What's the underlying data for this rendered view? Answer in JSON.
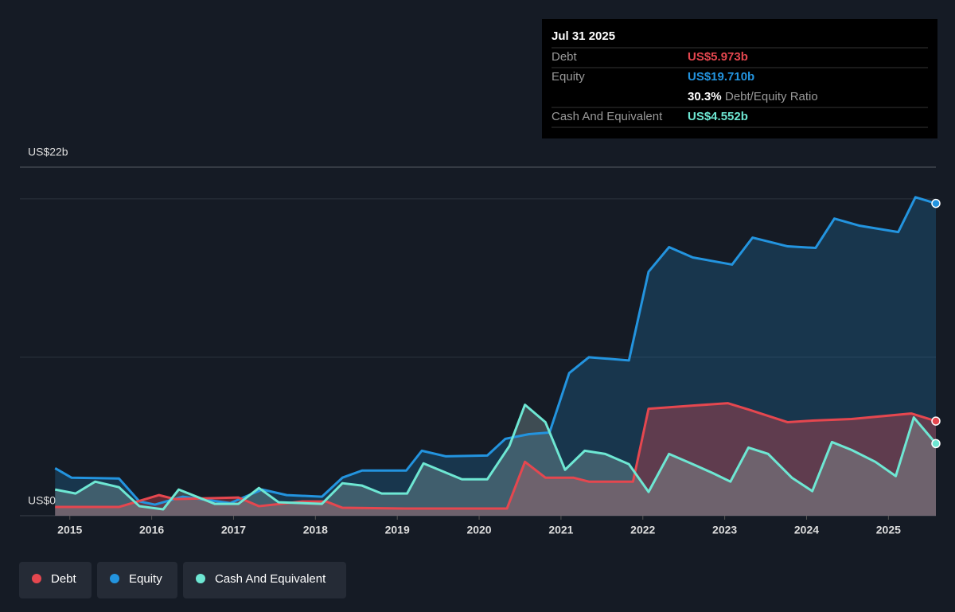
{
  "chart_data": {
    "type": "area",
    "xlim": [
      2014.39,
      2025.58
    ],
    "xticks": [
      2015,
      2016,
      2017,
      2018,
      2019,
      2020,
      2021,
      2022,
      2023,
      2024,
      2025
    ],
    "ylim": [
      0,
      22
    ],
    "yticks": [
      {
        "value": 0,
        "label": "US$0"
      },
      {
        "value": 22,
        "label": "US$22b"
      }
    ],
    "gridlines": [
      10,
      20
    ],
    "series": [
      {
        "name": "Debt",
        "color": "#e5474f",
        "x": [
          2014.82,
          2015.6,
          2016.09,
          2016.28,
          2017.06,
          2017.31,
          2017.84,
          2018.13,
          2018.33,
          2019.11,
          2019.98,
          2020.34,
          2020.56,
          2020.81,
          2021.15,
          2021.34,
          2021.88,
          2022.07,
          2022.61,
          2023.04,
          2023.29,
          2023.77,
          2024.07,
          2024.55,
          2025.28,
          2025.58
        ],
        "values": [
          0.55,
          0.55,
          1.3,
          1.05,
          1.15,
          0.6,
          0.9,
          0.9,
          0.5,
          0.45,
          0.45,
          0.45,
          3.4,
          2.4,
          2.4,
          2.15,
          2.15,
          6.75,
          6.95,
          7.1,
          6.7,
          5.9,
          6.0,
          6.1,
          6.45,
          5.973
        ]
      },
      {
        "name": "Equity",
        "color": "#2394df",
        "x": [
          2014.82,
          2015.02,
          2015.6,
          2015.85,
          2016.04,
          2016.38,
          2016.96,
          2017.35,
          2017.65,
          2018.08,
          2018.33,
          2018.57,
          2019.11,
          2019.3,
          2019.59,
          2020.1,
          2020.32,
          2020.61,
          2020.86,
          2021.1,
          2021.34,
          2021.83,
          2022.07,
          2022.32,
          2022.61,
          2023.09,
          2023.34,
          2023.77,
          2024.11,
          2024.34,
          2024.65,
          2025.12,
          2025.33,
          2025.58
        ],
        "values": [
          3.0,
          2.4,
          2.35,
          0.9,
          0.7,
          1.2,
          0.8,
          1.65,
          1.3,
          1.2,
          2.4,
          2.85,
          2.85,
          4.1,
          3.75,
          3.8,
          4.85,
          5.15,
          5.25,
          9.0,
          10.0,
          9.8,
          15.4,
          16.95,
          16.3,
          15.85,
          17.55,
          17.0,
          16.9,
          18.75,
          18.3,
          17.9,
          20.1,
          19.71
        ]
      },
      {
        "name": "Cash And Equivalent",
        "color": "#6ee7d3",
        "x": [
          2014.82,
          2015.07,
          2015.31,
          2015.6,
          2015.85,
          2016.14,
          2016.33,
          2016.77,
          2017.06,
          2017.31,
          2017.55,
          2018.08,
          2018.33,
          2018.57,
          2018.81,
          2019.12,
          2019.32,
          2019.79,
          2020.1,
          2020.37,
          2020.56,
          2020.81,
          2021.05,
          2021.29,
          2021.54,
          2021.83,
          2022.07,
          2022.32,
          2022.61,
          2022.85,
          2023.07,
          2023.29,
          2023.53,
          2023.82,
          2024.07,
          2024.31,
          2024.55,
          2024.84,
          2025.09,
          2025.31,
          2025.58
        ],
        "values": [
          1.65,
          1.4,
          2.15,
          1.8,
          0.6,
          0.4,
          1.65,
          0.75,
          0.75,
          1.75,
          0.85,
          0.75,
          2.05,
          1.9,
          1.4,
          1.4,
          3.3,
          2.3,
          2.3,
          4.4,
          7.0,
          5.9,
          2.9,
          4.1,
          3.9,
          3.25,
          1.5,
          3.9,
          3.25,
          2.7,
          2.15,
          4.3,
          3.9,
          2.4,
          1.55,
          4.65,
          4.15,
          3.4,
          2.5,
          6.2,
          4.552
        ]
      }
    ],
    "tooltip": {
      "date": "Jul 31 2025",
      "debt": "US$5.973b",
      "equity": "US$19.710b",
      "ratio": "30.3%",
      "ratio_label": "Debt/Equity Ratio",
      "cash": "US$4.552b"
    }
  }
}
